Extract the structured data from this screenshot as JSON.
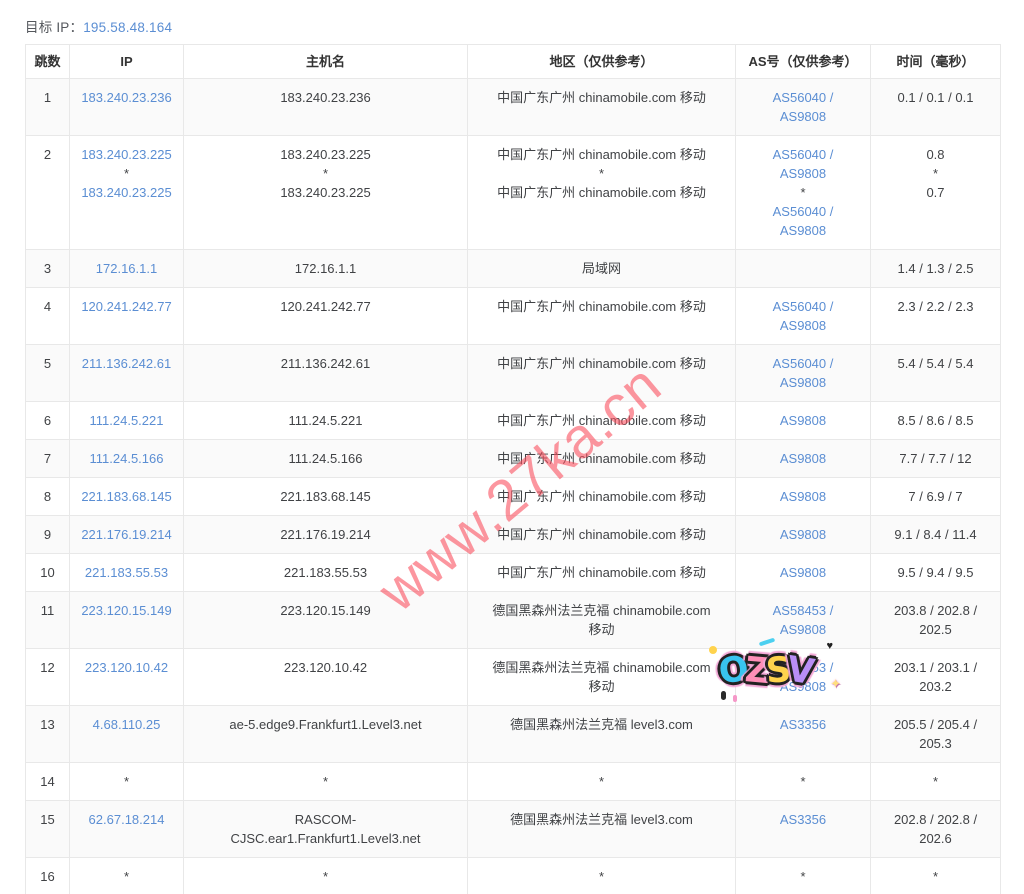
{
  "page": {
    "title_label": "目标 IP：",
    "target_ip": "195.58.48.164"
  },
  "colors": {
    "link_blue": "#5b8ed3",
    "body_text": "#404245",
    "header_text": "#333333",
    "stripe_gray": "#fafafa",
    "border_gray": "#e8e8e8",
    "watermark_red": "#fa505f"
  },
  "watermark": {
    "text": "www.27ka.cn"
  },
  "sticker": {
    "text": "OZSV",
    "letters": [
      {
        "char": "O",
        "color": "#38c4ef",
        "tilt": -8
      },
      {
        "char": "Z",
        "color": "#ff8fb8",
        "tilt": 5
      },
      {
        "char": "S",
        "color": "#ffd34d",
        "tilt": -4
      },
      {
        "char": "V",
        "color": "#b98ef5",
        "tilt": 9
      }
    ],
    "decorations": [
      "yellow-dot",
      "cyan-dash",
      "heart",
      "sparkle",
      "drips"
    ]
  },
  "table": {
    "columns": [
      {
        "key": "hop",
        "label": "跳数"
      },
      {
        "key": "ip",
        "label": "IP"
      },
      {
        "key": "host",
        "label": "主机名"
      },
      {
        "key": "region",
        "label": "地区（仅供参考）"
      },
      {
        "key": "asn",
        "label": "AS号（仅供参考）"
      },
      {
        "key": "time",
        "label": "时间（毫秒）"
      }
    ],
    "rows": [
      {
        "hop": "1",
        "ip": [
          "183.240.23.236"
        ],
        "host": [
          "183.240.23.236"
        ],
        "region": [
          "中国广东广州 chinamobile.com 移动"
        ],
        "asn": [
          "AS56040 /",
          "AS9808"
        ],
        "time": [
          "0.1 / 0.1 / 0.1"
        ]
      },
      {
        "hop": "2",
        "ip": [
          "183.240.23.225",
          "*",
          "183.240.23.225"
        ],
        "host": [
          "183.240.23.225",
          "*",
          "183.240.23.225"
        ],
        "region": [
          "中国广东广州 chinamobile.com 移动",
          "*",
          "中国广东广州 chinamobile.com 移动"
        ],
        "asn": [
          "AS56040 /",
          "AS9808",
          "*",
          "AS56040 /",
          "AS9808"
        ],
        "time": [
          "0.8",
          "*",
          "0.7"
        ]
      },
      {
        "hop": "3",
        "ip": [
          "172.16.1.1"
        ],
        "host": [
          "172.16.1.1"
        ],
        "region": [
          "局域网"
        ],
        "asn": [],
        "time": [
          "1.4 / 1.3 / 2.5"
        ]
      },
      {
        "hop": "4",
        "ip": [
          "120.241.242.77"
        ],
        "host": [
          "120.241.242.77"
        ],
        "region": [
          "中国广东广州 chinamobile.com 移动"
        ],
        "asn": [
          "AS56040 /",
          "AS9808"
        ],
        "time": [
          "2.3 / 2.2 / 2.3"
        ]
      },
      {
        "hop": "5",
        "ip": [
          "211.136.242.61"
        ],
        "host": [
          "211.136.242.61"
        ],
        "region": [
          "中国广东广州 chinamobile.com 移动"
        ],
        "asn": [
          "AS56040 /",
          "AS9808"
        ],
        "time": [
          "5.4 / 5.4 / 5.4"
        ]
      },
      {
        "hop": "6",
        "ip": [
          "111.24.5.221"
        ],
        "host": [
          "111.24.5.221"
        ],
        "region": [
          "中国广东广州 chinamobile.com 移动"
        ],
        "asn": [
          "AS9808"
        ],
        "time": [
          "8.5 / 8.6 / 8.5"
        ]
      },
      {
        "hop": "7",
        "ip": [
          "111.24.5.166"
        ],
        "host": [
          "111.24.5.166"
        ],
        "region": [
          "中国广东广州 chinamobile.com 移动"
        ],
        "asn": [
          "AS9808"
        ],
        "time": [
          "7.7 / 7.7 / 12"
        ]
      },
      {
        "hop": "8",
        "ip": [
          "221.183.68.145"
        ],
        "host": [
          "221.183.68.145"
        ],
        "region": [
          "中国广东广州 chinamobile.com 移动"
        ],
        "asn": [
          "AS9808"
        ],
        "time": [
          "7 / 6.9 / 7"
        ]
      },
      {
        "hop": "9",
        "ip": [
          "221.176.19.214"
        ],
        "host": [
          "221.176.19.214"
        ],
        "region": [
          "中国广东广州 chinamobile.com 移动"
        ],
        "asn": [
          "AS9808"
        ],
        "time": [
          "9.1 / 8.4 / 11.4"
        ]
      },
      {
        "hop": "10",
        "ip": [
          "221.183.55.53"
        ],
        "host": [
          "221.183.55.53"
        ],
        "region": [
          "中国广东广州 chinamobile.com 移动"
        ],
        "asn": [
          "AS9808"
        ],
        "time": [
          "9.5 / 9.4 / 9.5"
        ]
      },
      {
        "hop": "11",
        "ip": [
          "223.120.15.149"
        ],
        "host": [
          "223.120.15.149"
        ],
        "region": [
          "德国黑森州法兰克福 chinamobile.com",
          "移动"
        ],
        "asn": [
          "AS58453 /",
          "AS9808"
        ],
        "time": [
          "203.8 / 202.8 /",
          "202.5"
        ]
      },
      {
        "hop": "12",
        "ip": [
          "223.120.10.42"
        ],
        "host": [
          "223.120.10.42"
        ],
        "region": [
          "德国黑森州法兰克福 chinamobile.com",
          "移动"
        ],
        "asn": [
          "AS58453 /",
          "AS9808"
        ],
        "time": [
          "203.1 / 203.1 /",
          "203.2"
        ]
      },
      {
        "hop": "13",
        "ip": [
          "4.68.110.25"
        ],
        "host": [
          "ae-5.edge9.Frankfurt1.Level3.net"
        ],
        "region": [
          "德国黑森州法兰克福 level3.com"
        ],
        "asn": [
          "AS3356"
        ],
        "time": [
          "205.5 / 205.4 /",
          "205.3"
        ]
      },
      {
        "hop": "14",
        "ip": [
          "*"
        ],
        "host": [
          "*"
        ],
        "region": [
          "*"
        ],
        "asn": [
          "*"
        ],
        "time": [
          "*"
        ]
      },
      {
        "hop": "15",
        "ip": [
          "62.67.18.214"
        ],
        "host": [
          "RASCOM-",
          "CJSC.ear1.Frankfurt1.Level3.net"
        ],
        "region": [
          "德国黑森州法兰克福 level3.com"
        ],
        "asn": [
          "AS3356"
        ],
        "time": [
          "202.8 / 202.8 /",
          "202.6"
        ]
      },
      {
        "hop": "16",
        "ip": [
          "*"
        ],
        "host": [
          "*"
        ],
        "region": [
          "*"
        ],
        "asn": [
          "*"
        ],
        "time": [
          "*"
        ]
      }
    ]
  }
}
